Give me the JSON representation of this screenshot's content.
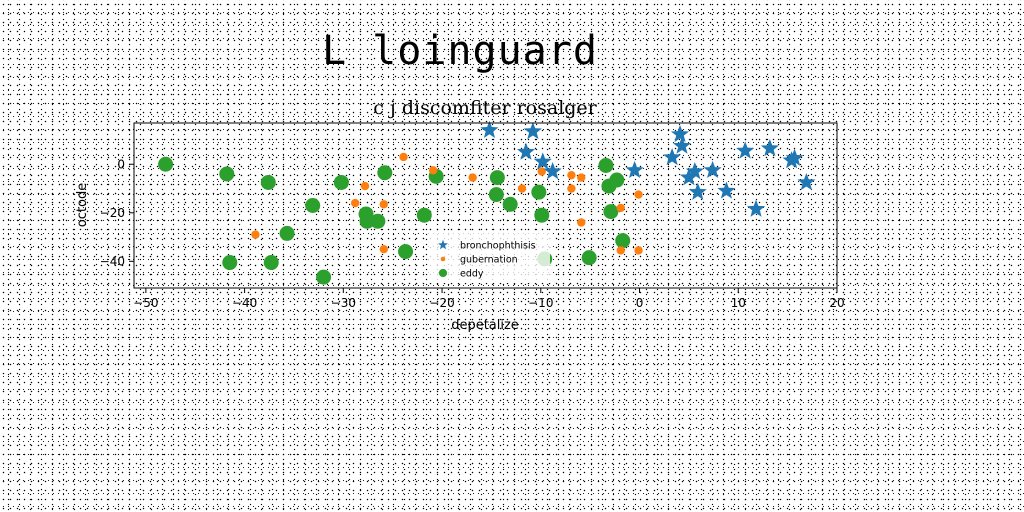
{
  "page_title": "L loinguard",
  "chart_data": {
    "type": "scatter",
    "title": "c j discomfiter rosalger",
    "xlabel": "depetalize",
    "ylabel": "octode",
    "xlim": [
      -51.2,
      20.0
    ],
    "ylim": [
      -51.0,
      17.0
    ],
    "xticks": [
      "−50",
      "−40",
      "−30",
      "−20",
      "−10",
      "0",
      "10",
      "20"
    ],
    "xtick_values": [
      -50,
      -40,
      -30,
      -20,
      -10,
      0,
      10,
      20
    ],
    "yticks": [
      "0",
      "−20",
      "−40"
    ],
    "ytick_values": [
      0,
      -20,
      -40
    ],
    "grid": false,
    "legend_position": "lower-center",
    "series": [
      {
        "name": "bronchophthisis",
        "marker": "star",
        "color": "#1f77b4",
        "points": [
          [
            -15.2,
            14.0
          ],
          [
            -10.8,
            13.5
          ],
          [
            -11.5,
            5.0
          ],
          [
            -9.8,
            1.0
          ],
          [
            -8.8,
            -3.0
          ],
          [
            -0.5,
            -2.5
          ],
          [
            3.3,
            2.8
          ],
          [
            4.1,
            12.3
          ],
          [
            4.3,
            7.5
          ],
          [
            5.0,
            -5.5
          ],
          [
            5.6,
            -3.0
          ],
          [
            5.9,
            -11.5
          ],
          [
            7.4,
            -2.5
          ],
          [
            8.8,
            -11.0
          ],
          [
            10.7,
            5.5
          ],
          [
            11.8,
            -18.5
          ],
          [
            13.2,
            6.5
          ],
          [
            15.4,
            1.5
          ],
          [
            15.7,
            2.5
          ],
          [
            16.9,
            -7.5
          ]
        ]
      },
      {
        "name": "gubernation",
        "marker": "circle-small",
        "color": "#ff7f0e",
        "points": [
          [
            -38.9,
            -29.0
          ],
          [
            -27.8,
            -9.0
          ],
          [
            -28.8,
            -16.0
          ],
          [
            -25.9,
            -16.5
          ],
          [
            -25.9,
            -35.0
          ],
          [
            -23.9,
            3.0
          ],
          [
            -20.9,
            -2.5
          ],
          [
            -16.9,
            -5.5
          ],
          [
            -11.9,
            -10.0
          ],
          [
            -9.9,
            -3.0
          ],
          [
            -6.9,
            -4.5
          ],
          [
            -6.9,
            -10.0
          ],
          [
            -5.9,
            -5.5
          ],
          [
            -5.9,
            -24.0
          ],
          [
            -1.9,
            -18.0
          ],
          [
            -1.9,
            -35.5
          ],
          [
            -0.1,
            -12.5
          ],
          [
            -0.1,
            -35.5
          ]
        ]
      },
      {
        "name": "eddy",
        "marker": "circle-large",
        "color": "#2ca02c",
        "points": [
          [
            -48.0,
            0.0
          ],
          [
            -41.8,
            -4.0
          ],
          [
            -41.5,
            -40.5
          ],
          [
            -37.6,
            -7.5
          ],
          [
            -37.3,
            -40.5
          ],
          [
            -35.7,
            -28.5
          ],
          [
            -33.1,
            -17.0
          ],
          [
            -32.0,
            -46.5
          ],
          [
            -30.2,
            -7.5
          ],
          [
            -27.7,
            -20.5
          ],
          [
            -27.6,
            -23.5
          ],
          [
            -26.5,
            -23.5
          ],
          [
            -25.8,
            -3.5
          ],
          [
            -23.7,
            -36.0
          ],
          [
            -21.8,
            -21.0
          ],
          [
            -20.6,
            -5.0
          ],
          [
            -14.5,
            -12.5
          ],
          [
            -14.4,
            -5.5
          ],
          [
            -13.1,
            -16.5
          ],
          [
            -10.2,
            -11.5
          ],
          [
            -9.9,
            -21.0
          ],
          [
            -9.6,
            -39.0
          ],
          [
            -5.1,
            -38.5
          ],
          [
            -3.4,
            -0.5
          ],
          [
            -3.1,
            -9.0
          ],
          [
            -2.9,
            -19.5
          ],
          [
            -2.3,
            -6.5
          ],
          [
            -1.7,
            -31.5
          ]
        ]
      }
    ]
  }
}
